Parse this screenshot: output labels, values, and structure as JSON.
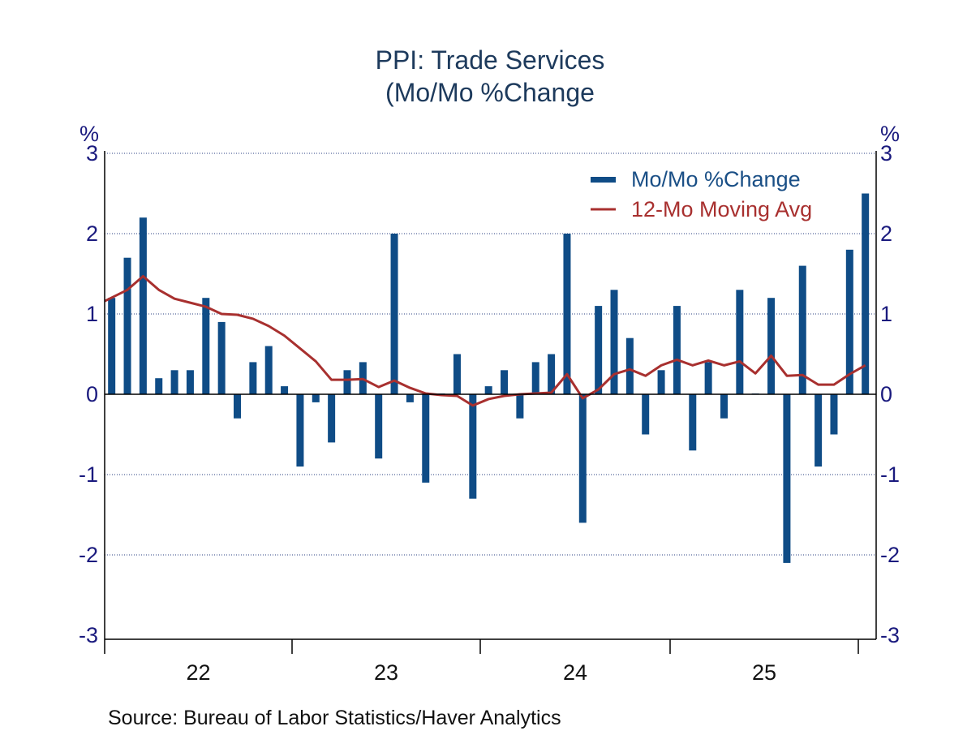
{
  "chart_data": {
    "type": "bar",
    "title": "PPI: Trade Services",
    "subtitle": "(Mo/Mo %Change",
    "xlabel": "",
    "ylabel_left": "%",
    "ylabel_right": "%",
    "ylim": [
      -3,
      3
    ],
    "yticks": [
      3,
      2,
      1,
      0,
      -1,
      -2,
      -3
    ],
    "ytick_labels": [
      "3",
      "2",
      "1",
      "0",
      "-1",
      "-2",
      "-3"
    ],
    "grid": true,
    "legend_position": "top-right",
    "x_year_labels": [
      "22",
      "23",
      "24",
      "25"
    ],
    "x_start": "2022-01",
    "x_end": "2026-01",
    "frequency": "monthly",
    "series": [
      {
        "name": "Mo/Mo %Change",
        "type": "bar",
        "color": "#0f4c86",
        "values": [
          1.2,
          1.7,
          2.2,
          0.2,
          0.3,
          0.3,
          1.2,
          0.9,
          -0.3,
          0.4,
          0.6,
          0.1,
          -0.9,
          -0.1,
          -0.6,
          0.3,
          0.4,
          -0.8,
          2.0,
          -0.1,
          -1.1,
          0.01,
          0.5,
          -1.3,
          0.1,
          0.3,
          -0.3,
          0.4,
          0.5,
          2.0,
          -1.6,
          1.1,
          1.3,
          0.7,
          -0.5,
          0.3,
          1.1,
          -0.7,
          0.4,
          -0.3,
          1.3,
          0.01,
          1.2,
          -2.1,
          1.6,
          -0.9,
          -0.5,
          1.8,
          2.5
        ]
      },
      {
        "name": "12-Mo Moving Avg",
        "type": "line",
        "color": "#a8302f",
        "values": [
          1.16,
          1.3,
          1.47,
          1.3,
          1.19,
          1.14,
          1.09,
          1.0,
          0.99,
          0.94,
          0.85,
          0.73,
          0.57,
          0.41,
          0.18,
          0.18,
          0.19,
          0.09,
          0.17,
          0.08,
          0.01,
          -0.01,
          -0.02,
          -0.14,
          -0.06,
          -0.02,
          0.0,
          0.01,
          0.02,
          0.25,
          -0.05,
          0.06,
          0.25,
          0.31,
          0.23,
          0.36,
          0.43,
          0.36,
          0.42,
          0.36,
          0.41,
          0.26,
          0.48,
          0.23,
          0.24,
          0.12,
          0.12,
          0.25,
          0.36
        ]
      }
    ],
    "source": "Source:  Bureau of Labor Statistics/Haver Analytics"
  }
}
